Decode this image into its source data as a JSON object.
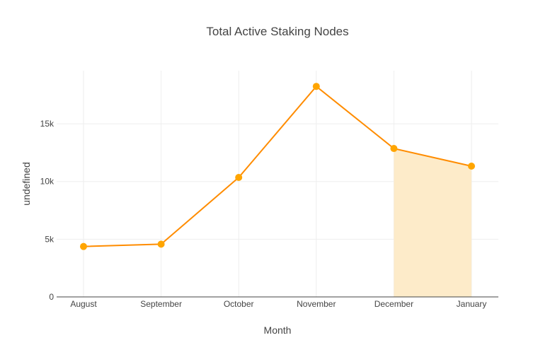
{
  "chart_data": {
    "type": "line",
    "title": "Total Active Staking Nodes",
    "xlabel": "Month",
    "ylabel": "undefined",
    "categories": [
      "August",
      "September",
      "October",
      "November",
      "December",
      "January"
    ],
    "series": [
      {
        "values": [
          4370,
          4570,
          10350,
          18240,
          12860,
          11330
        ]
      }
    ],
    "shaded_range": [
      "December",
      "January"
    ],
    "ylim": [
      0,
      19600
    ],
    "yticks": [
      0,
      5000,
      10000,
      15000
    ],
    "ytick_labels": [
      "0",
      "5k",
      "10k",
      "15k"
    ],
    "grid": true,
    "colors": {
      "line": "#ff8c00",
      "marker": "#ffa500",
      "shade": "#fdebc9"
    }
  }
}
